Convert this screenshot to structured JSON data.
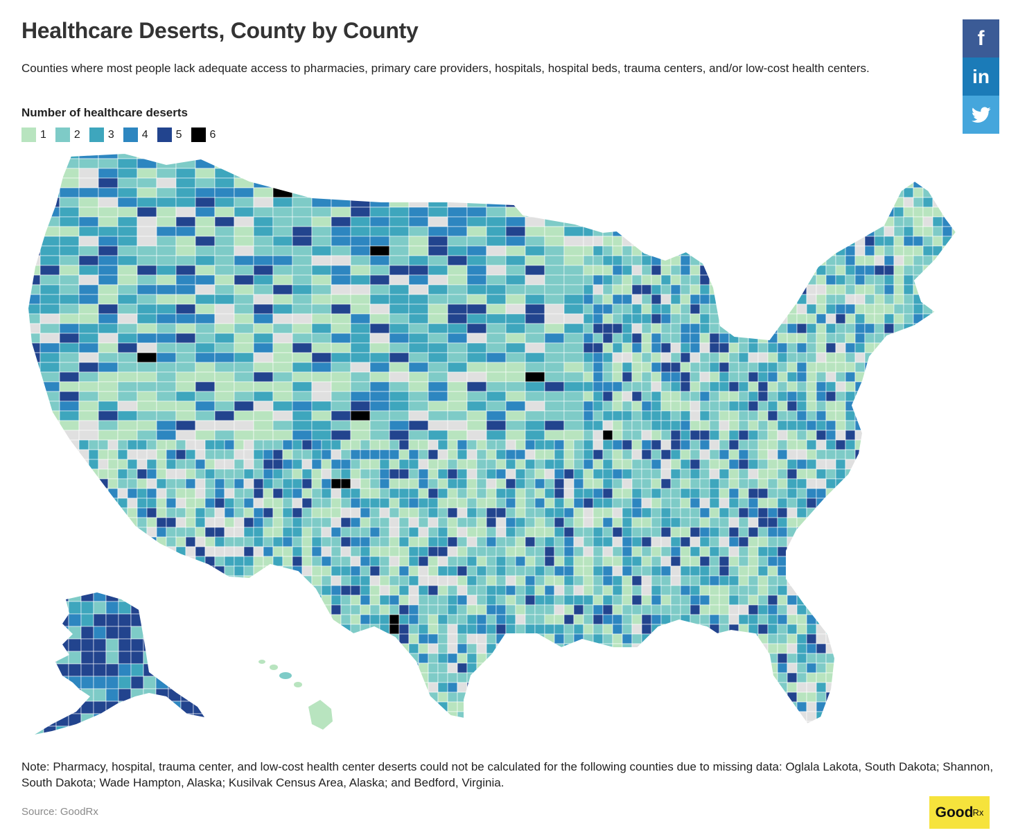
{
  "header": {
    "title": "Healthcare Deserts, County by County",
    "subtitle": "Counties where most people lack adequate access to pharmacies, primary care providers, hospitals, hospital beds, trauma centers, and/or low-cost health centers."
  },
  "legend": {
    "title": "Number of healthcare deserts",
    "items": [
      {
        "label": "1",
        "color": "#b8e4bf"
      },
      {
        "label": "2",
        "color": "#7ecbc7"
      },
      {
        "label": "3",
        "color": "#3ea6bd"
      },
      {
        "label": "4",
        "color": "#2d86c0"
      },
      {
        "label": "5",
        "color": "#22448e"
      },
      {
        "label": "6",
        "color": "#000000"
      }
    ],
    "no_data_color": "#e0e0e0"
  },
  "share": {
    "facebook_icon": "f",
    "linkedin_icon": "in",
    "twitter_icon": "twitter-bird"
  },
  "note": "Note: Pharmacy, hospital, trauma center, and low-cost health center deserts could not be calculated for the following counties due to missing data: Oglala Lakota, South Dakota; Shannon, South Dakota; Wade Hampton, Alaska; Kusilvak Census Area, Alaska; and Bedford, Virginia.",
  "source": "Source: GoodRx",
  "logo": {
    "text": "Good",
    "sub": "Rx"
  }
}
